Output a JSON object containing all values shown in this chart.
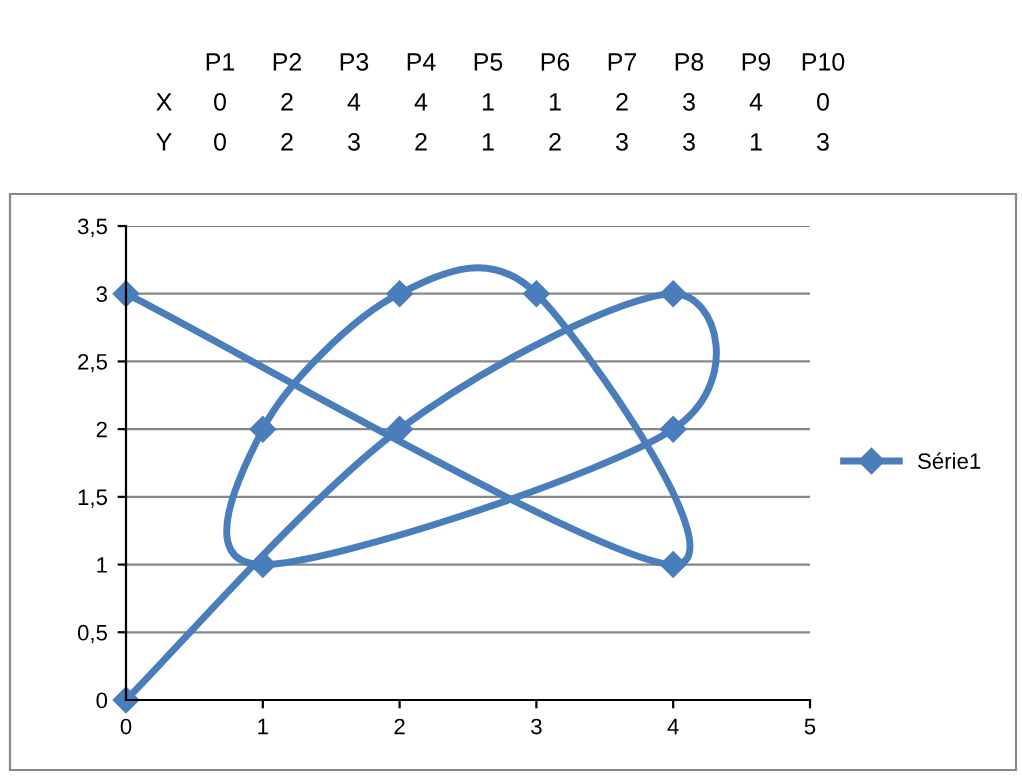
{
  "chart_data": {
    "type": "line",
    "annotations": [
      "P1",
      "P2",
      "P3",
      "P4",
      "P5",
      "P6",
      "P7",
      "P8",
      "P9",
      "P10",
      "X",
      "0",
      "2",
      "4",
      "4",
      "1",
      "1",
      "2",
      "3",
      "4",
      "0",
      "Y",
      "0",
      "2",
      "3",
      "2",
      "1",
      "2",
      "3",
      "3",
      "1",
      "3"
    ],
    "series": [
      {
        "name": "Série1",
        "color": "#4a7ebb",
        "x": [
          0,
          2,
          4,
          4,
          1,
          1,
          2,
          3,
          4,
          0
        ],
        "values": [
          0,
          2,
          3,
          2,
          1,
          2,
          3,
          3,
          1,
          3
        ]
      }
    ],
    "xlim": [
      0,
      5
    ],
    "xticks": [
      0,
      1,
      2,
      3,
      4,
      5
    ],
    "ylim": [
      0,
      3.5
    ],
    "yticks": [
      0,
      {
        "value": 0.5,
        "label": "0,5"
      },
      1,
      {
        "value": 1.5,
        "label": "1,5"
      },
      2,
      {
        "value": 2.5,
        "label": "2,5"
      },
      3,
      {
        "value": 3.5,
        "label": "3,5"
      }
    ],
    "grid": "y",
    "legend": "right",
    "marker": "diamond",
    "line_style": "solid"
  }
}
